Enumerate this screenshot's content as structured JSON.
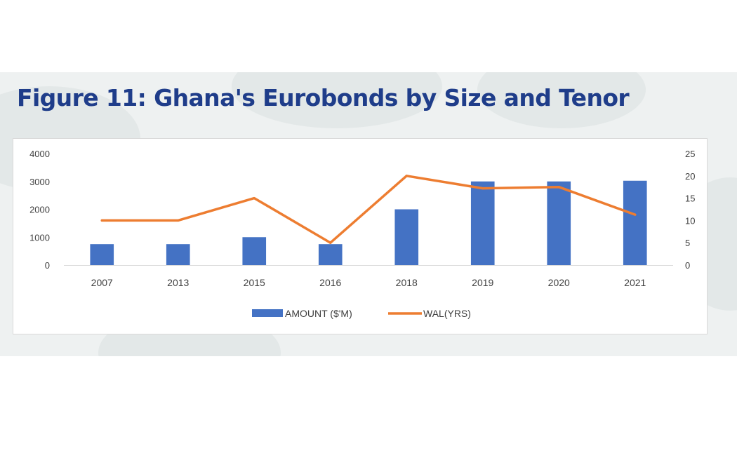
{
  "chart_data": {
    "type": "bar",
    "title": "Figure 11: Ghana's Eurobonds by Size and Tenor",
    "categories": [
      "2007",
      "2013",
      "2015",
      "2016",
      "2018",
      "2019",
      "2020",
      "2021"
    ],
    "series": [
      {
        "name": "AMOUNT ($'M)",
        "type": "bar",
        "axis": "left",
        "color": "#4472c4",
        "values": [
          750,
          750,
          1000,
          750,
          2000,
          3000,
          3000,
          3025
        ]
      },
      {
        "name": "WAL(YRS)",
        "type": "line",
        "axis": "right",
        "color": "#ed7d31",
        "values": [
          10,
          10,
          15,
          5,
          20,
          17.2,
          17.5,
          11.3
        ]
      }
    ],
    "y_left": {
      "ylim": [
        0,
        4000
      ],
      "ticks": [
        0,
        1000,
        2000,
        3000,
        4000
      ]
    },
    "y_right": {
      "ylim": [
        0,
        25
      ],
      "ticks": [
        0,
        5,
        10,
        15,
        20,
        25
      ]
    },
    "grid": false,
    "legend_position": "bottom",
    "title_color": "#1f3d8a"
  }
}
